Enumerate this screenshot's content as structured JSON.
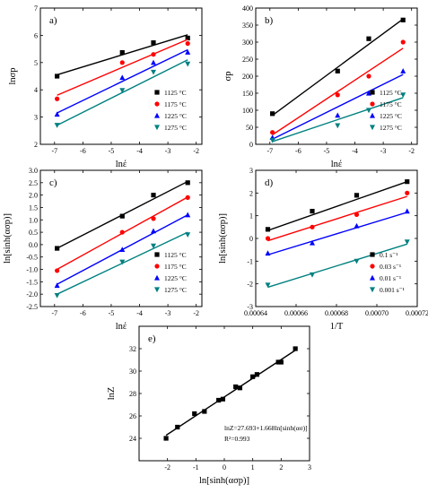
{
  "figure": {
    "panels": [
      {
        "id": "a",
        "label": "a)",
        "ylabel": "lnσp",
        "xlabel": "lnέ",
        "legend_position": "lower-right"
      },
      {
        "id": "b",
        "label": "b)",
        "ylabel": "σp",
        "xlabel": "lnέ",
        "legend_position": "lower-right"
      },
      {
        "id": "c",
        "label": "c)",
        "ylabel": "ln[sinh(ασp)]",
        "xlabel": "lnέ",
        "legend_position": "lower-right"
      },
      {
        "id": "d",
        "label": "d)",
        "ylabel": "ln[sinh(ασp)]",
        "xlabel": "1/T",
        "legend_position": "lower-right"
      },
      {
        "id": "e",
        "label": "e)",
        "ylabel": "lnZ",
        "xlabel": "ln[sinh(ασp)]",
        "annotation": [
          "lnZ=27.693+1.668ln[sinh(ασ)]",
          "R²=0.993"
        ]
      }
    ]
  },
  "colors": {
    "1125": "#000000",
    "1175": "#ff0000",
    "1225": "#0000ff",
    "1275": "#008080"
  },
  "chart_data": [
    {
      "type": "scatter",
      "panel": "a)",
      "xlabel": "lnέ",
      "ylabel": "lnσp",
      "xlim": [
        -7.5,
        -1.8
      ],
      "ylim": [
        2,
        7
      ],
      "grid": false,
      "legend": "bottom-right",
      "xticks": [
        -7,
        -6,
        -5,
        -4,
        -3,
        -2
      ],
      "yticks": [
        2,
        3,
        4,
        5,
        6,
        7
      ],
      "series": [
        {
          "name": "1125 °C",
          "marker": "square",
          "color": "#000000",
          "x": [
            -6.91,
            -4.61,
            -3.51,
            -2.3
          ],
          "y": [
            4.5,
            5.37,
            5.73,
            5.9
          ],
          "fit": [
            [
              -6.91,
              4.55
            ],
            [
              -2.3,
              6.02
            ]
          ]
        },
        {
          "name": "1175 °C",
          "marker": "circle",
          "color": "#ff0000",
          "x": [
            -6.91,
            -4.61,
            -3.51,
            -2.3
          ],
          "y": [
            3.67,
            5.0,
            5.3,
            5.7
          ],
          "fit": [
            [
              -6.91,
              3.8
            ],
            [
              -2.3,
              5.85
            ]
          ]
        },
        {
          "name": "1225 °C",
          "marker": "triangle-up",
          "color": "#0000ff",
          "x": [
            -6.91,
            -4.61,
            -3.51,
            -2.3
          ],
          "y": [
            3.1,
            4.45,
            5.0,
            5.38
          ],
          "fit": [
            [
              -6.91,
              3.15
            ],
            [
              -2.3,
              5.47
            ]
          ]
        },
        {
          "name": "1275 °C",
          "marker": "triangle-down",
          "color": "#008080",
          "x": [
            -6.91,
            -4.61,
            -3.51,
            -2.3
          ],
          "y": [
            2.7,
            3.98,
            4.65,
            4.95
          ],
          "fit": [
            [
              -6.91,
              2.7
            ],
            [
              -2.3,
              5.1
            ]
          ]
        }
      ]
    },
    {
      "type": "scatter",
      "panel": "b)",
      "xlabel": "lnέ",
      "ylabel": "σp",
      "xlim": [
        -7.5,
        -1.8
      ],
      "ylim": [
        0,
        400
      ],
      "grid": false,
      "legend": "bottom-right",
      "xticks": [
        -7,
        -6,
        -5,
        -4,
        -3,
        -2
      ],
      "yticks": [
        0,
        50,
        100,
        150,
        200,
        250,
        300,
        350,
        400
      ],
      "series": [
        {
          "name": "1125 °C",
          "marker": "square",
          "color": "#000000",
          "x": [
            -6.91,
            -4.61,
            -3.51,
            -2.3
          ],
          "y": [
            90,
            215,
            310,
            365
          ],
          "fit": [
            [
              -6.91,
              85
            ],
            [
              -2.3,
              368
            ]
          ]
        },
        {
          "name": "1175 °C",
          "marker": "circle",
          "color": "#ff0000",
          "x": [
            -6.91,
            -4.61,
            -3.51,
            -2.3
          ],
          "y": [
            35,
            145,
            200,
            300
          ],
          "fit": [
            [
              -6.91,
              28
            ],
            [
              -2.3,
              282
            ]
          ]
        },
        {
          "name": "1225 °C",
          "marker": "triangle-up",
          "color": "#0000ff",
          "x": [
            -6.91,
            -4.61,
            -3.51,
            -2.3
          ],
          "y": [
            20,
            85,
            150,
            215
          ],
          "fit": [
            [
              -6.91,
              15
            ],
            [
              -2.3,
              205
            ]
          ]
        },
        {
          "name": "1275 °C",
          "marker": "triangle-down",
          "color": "#008080",
          "x": [
            -6.91,
            -4.61,
            -3.51,
            -2.3
          ],
          "y": [
            12,
            55,
            100,
            145
          ],
          "fit": [
            [
              -6.91,
              8
            ],
            [
              -2.3,
              137
            ]
          ]
        }
      ]
    },
    {
      "type": "scatter",
      "panel": "c)",
      "xlabel": "lnέ",
      "ylabel": "ln[sinh(ασp)]",
      "xlim": [
        -7.5,
        -1.8
      ],
      "ylim": [
        -2.5,
        3
      ],
      "grid": false,
      "legend": "bottom-right",
      "xticks": [
        -7,
        -6,
        -5,
        -4,
        -3,
        -2
      ],
      "yticks": [
        -2.5,
        -2.0,
        -1.5,
        -1.0,
        -0.5,
        0.0,
        0.5,
        1.0,
        1.5,
        2.0,
        2.5,
        3.0
      ],
      "series": [
        {
          "name": "1125 °C",
          "marker": "square",
          "color": "#000000",
          "x": [
            -6.91,
            -4.61,
            -3.51,
            -2.3
          ],
          "y": [
            -0.15,
            1.15,
            2.0,
            2.5
          ],
          "fit": [
            [
              -6.91,
              -0.15
            ],
            [
              -2.3,
              2.55
            ]
          ]
        },
        {
          "name": "1175 °C",
          "marker": "circle",
          "color": "#ff0000",
          "x": [
            -6.91,
            -4.61,
            -3.51,
            -2.3
          ],
          "y": [
            -1.05,
            0.5,
            1.05,
            1.9
          ],
          "fit": [
            [
              -6.91,
              -1.0
            ],
            [
              -2.3,
              1.92
            ]
          ]
        },
        {
          "name": "1225 °C",
          "marker": "triangle-up",
          "color": "#0000ff",
          "x": [
            -6.91,
            -4.61,
            -3.51,
            -2.3
          ],
          "y": [
            -1.65,
            -0.2,
            0.55,
            1.2
          ],
          "fit": [
            [
              -6.91,
              -1.6
            ],
            [
              -2.3,
              1.2
            ]
          ]
        },
        {
          "name": "1275 °C",
          "marker": "triangle-down",
          "color": "#008080",
          "x": [
            -6.91,
            -4.61,
            -3.51,
            -2.3
          ],
          "y": [
            -2.05,
            -0.7,
            -0.05,
            0.4
          ],
          "fit": [
            [
              -6.91,
              -2.0
            ],
            [
              -2.3,
              0.5
            ]
          ]
        }
      ]
    },
    {
      "type": "scatter",
      "panel": "d)",
      "xlabel": "1/T",
      "ylabel": "ln[sinh(ασp)]",
      "xlim": [
        0.00064,
        0.00072
      ],
      "ylim": [
        -3,
        3
      ],
      "grid": false,
      "legend": "bottom-right",
      "xticks": [
        0.00064,
        0.00066,
        0.00068,
        0.0007,
        0.00072
      ],
      "xticklabels": [
        "0.00064",
        "0.00066",
        "0.00068",
        "0.00070",
        "0.00072"
      ],
      "yticks": [
        -3,
        -2,
        -1,
        0,
        1,
        2,
        3
      ],
      "series": [
        {
          "name": "0.1 s⁻¹",
          "marker": "square",
          "color": "#000000",
          "x": [
            0.000646,
            0.000668,
            0.00069,
            0.000715
          ],
          "y": [
            0.4,
            1.2,
            1.9,
            2.5
          ],
          "fit": [
            [
              0.000646,
              0.35
            ],
            [
              0.000715,
              2.5
            ]
          ]
        },
        {
          "name": "0.03 s⁻¹",
          "marker": "circle",
          "color": "#ff0000",
          "x": [
            0.000646,
            0.000668,
            0.00069,
            0.000715
          ],
          "y": [
            0.0,
            0.5,
            1.05,
            2.0
          ],
          "fit": [
            [
              0.000646,
              -0.1
            ],
            [
              0.000715,
              1.85
            ]
          ]
        },
        {
          "name": "0.01 s⁻¹",
          "marker": "triangle-up",
          "color": "#0000ff",
          "x": [
            0.000646,
            0.000668,
            0.00069,
            0.000715
          ],
          "y": [
            -0.65,
            -0.2,
            0.55,
            1.2
          ],
          "fit": [
            [
              0.000646,
              -0.72
            ],
            [
              0.000715,
              1.15
            ]
          ]
        },
        {
          "name": "0.001 s⁻¹",
          "marker": "triangle-down",
          "color": "#008080",
          "x": [
            0.000646,
            0.000668,
            0.00069,
            0.000715
          ],
          "y": [
            -2.05,
            -1.6,
            -1.0,
            -0.15
          ],
          "fit": [
            [
              0.000646,
              -2.15
            ],
            [
              0.000715,
              -0.25
            ]
          ]
        }
      ]
    },
    {
      "type": "scatter",
      "panel": "e)",
      "xlabel": "ln[sinh(ασp)]",
      "ylabel": "lnZ",
      "xlim": [
        -3,
        3
      ],
      "ylim": [
        22,
        34
      ],
      "grid": false,
      "xticks": [
        -2,
        -1,
        0,
        1,
        2,
        3
      ],
      "yticks": [
        24,
        26,
        28,
        30,
        32
      ],
      "series": [
        {
          "name": "data",
          "marker": "square",
          "color": "#000000",
          "x": [
            -2.05,
            -1.65,
            -1.05,
            -0.7,
            -0.2,
            -0.05,
            0.4,
            0.55,
            1.0,
            1.15,
            1.9,
            2.0,
            2.5
          ],
          "y": [
            24.0,
            25.0,
            26.2,
            26.4,
            27.4,
            27.5,
            28.6,
            28.5,
            29.5,
            29.7,
            30.8,
            30.8,
            32.0
          ],
          "fit": [
            [
              -2.05,
              24.27
            ],
            [
              2.5,
              31.86
            ]
          ]
        }
      ]
    }
  ]
}
